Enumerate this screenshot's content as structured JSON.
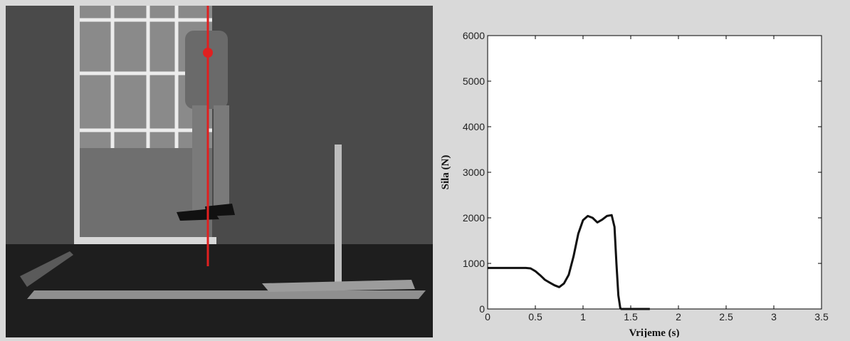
{
  "photo": {
    "description_icon": "jump-photo",
    "overlay_color": "#e02020"
  },
  "chart_data": {
    "type": "line",
    "title": "",
    "xlabel": "Vrijeme (s)",
    "ylabel": "Sila (N)",
    "xlim": [
      0,
      3.5
    ],
    "ylim": [
      0,
      6000
    ],
    "xticks": [
      "0",
      "0.5",
      "1",
      "1.5",
      "2",
      "2.5",
      "3",
      "3.5"
    ],
    "yticks": [
      "0",
      "1000",
      "2000",
      "3000",
      "4000",
      "5000",
      "6000"
    ],
    "grid": false,
    "legend": "none",
    "series": [
      {
        "color": "#111111",
        "x": [
          0,
          0.1,
          0.2,
          0.3,
          0.4,
          0.45,
          0.5,
          0.55,
          0.6,
          0.65,
          0.7,
          0.75,
          0.8,
          0.85,
          0.9,
          0.95,
          1.0,
          1.05,
          1.1,
          1.15,
          1.2,
          1.25,
          1.3,
          1.33,
          1.35,
          1.37,
          1.39,
          1.4,
          1.45,
          1.5,
          1.6,
          1.7
        ],
        "y": [
          900,
          900,
          900,
          900,
          900,
          890,
          830,
          740,
          640,
          580,
          520,
          480,
          560,
          750,
          1150,
          1650,
          1950,
          2040,
          2000,
          1900,
          1960,
          2040,
          2060,
          1800,
          1000,
          300,
          20,
          0,
          0,
          0,
          0,
          0
        ]
      }
    ]
  }
}
